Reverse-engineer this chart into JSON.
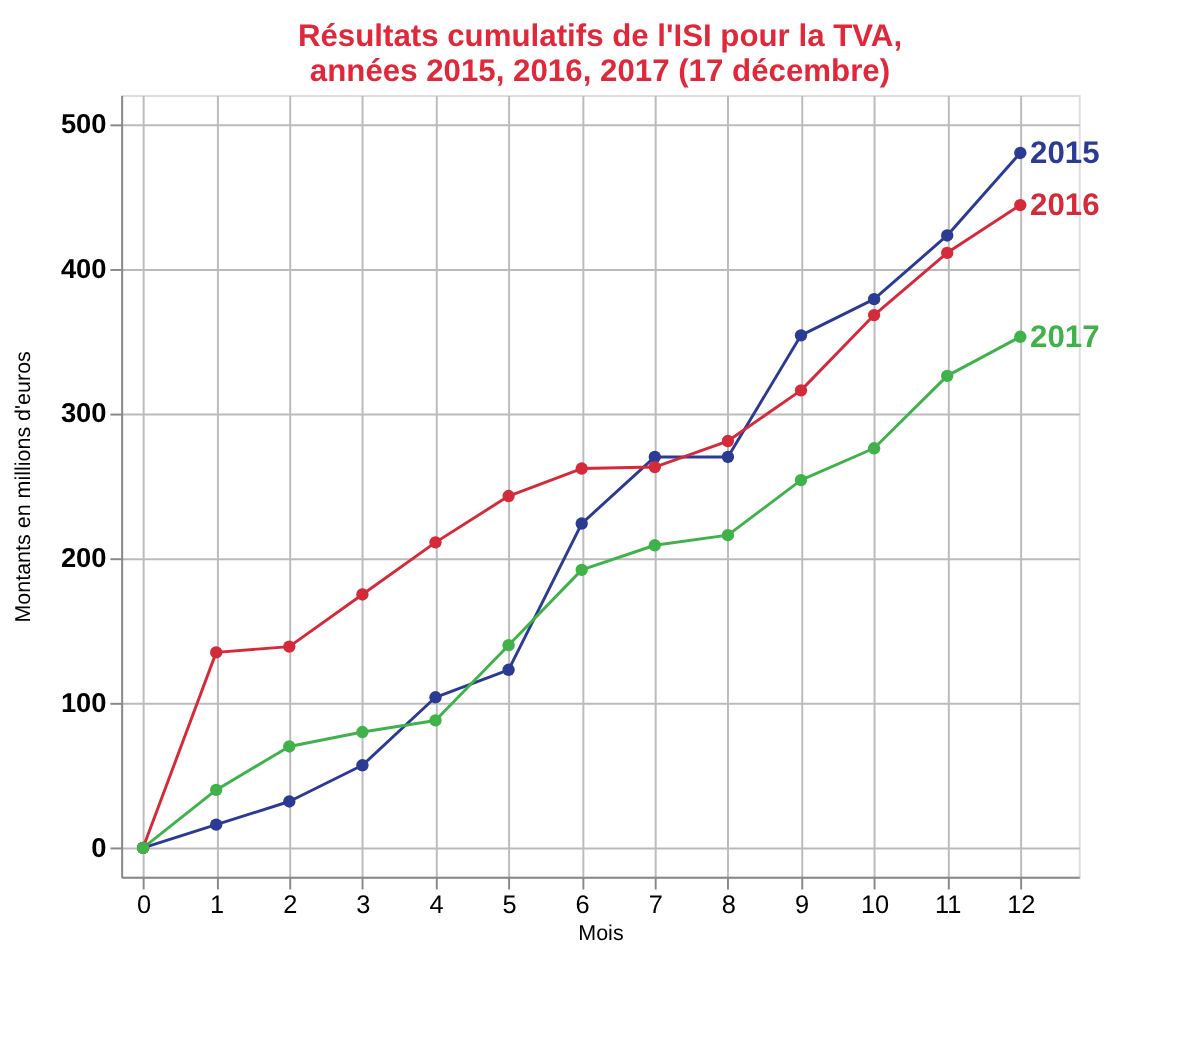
{
  "chart_data": {
    "type": "line",
    "title": [
      "Résultats cumulatifs de l'ISI pour la TVA,",
      "années 2015, 2016, 2017 (17 décembre)"
    ],
    "xlabel": "Mois",
    "ylabel": "Montants en millions d'euros",
    "x": [
      0,
      1,
      2,
      3,
      4,
      5,
      6,
      7,
      8,
      9,
      10,
      11,
      12
    ],
    "series": [
      {
        "name": "2015",
        "color": "#2b3a93",
        "values": [
          0,
          16,
          32,
          57,
          104,
          123,
          224,
          270,
          270,
          354,
          379,
          423,
          480
        ]
      },
      {
        "name": "2016",
        "color": "#d42a3a",
        "values": [
          0,
          135,
          139,
          175,
          211,
          243,
          262,
          263,
          281,
          316,
          368,
          411,
          444
        ]
      },
      {
        "name": "2017",
        "color": "#3fb24a",
        "values": [
          0,
          40,
          70,
          80,
          88,
          140,
          192,
          209,
          216,
          254,
          276,
          326,
          353
        ]
      }
    ],
    "xlim": [
      -0.3,
      12.8
    ],
    "xticks": [
      0,
      1,
      2,
      3,
      4,
      5,
      6,
      7,
      8,
      9,
      10,
      11,
      12
    ],
    "ylim": [
      -20,
      520
    ],
    "yticks": [
      0,
      100,
      200,
      300,
      400,
      500
    ],
    "grid": true,
    "marker": "circle",
    "line_style": "solid",
    "legend": false
  }
}
